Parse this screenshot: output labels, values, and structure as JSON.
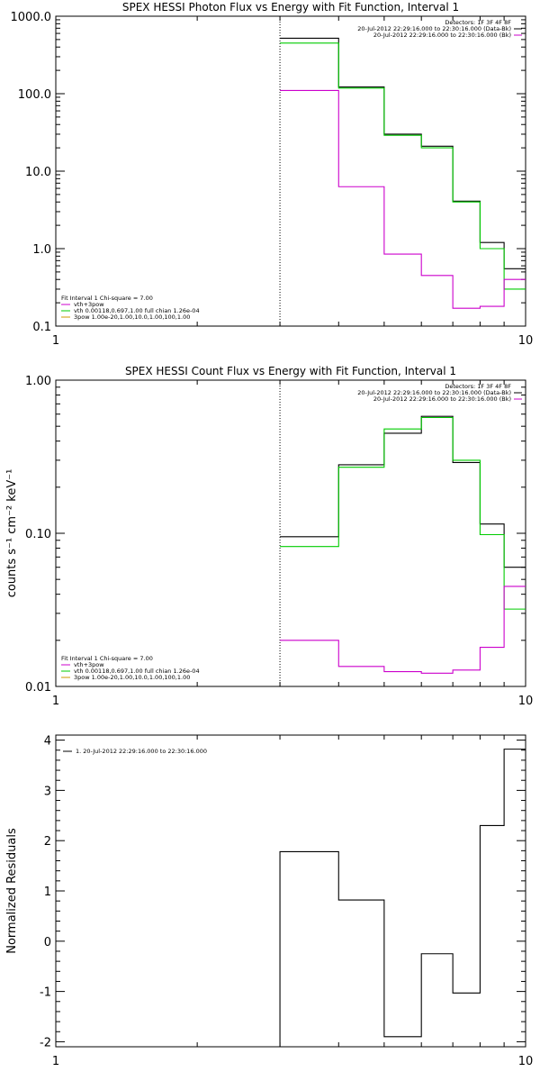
{
  "chart_data": [
    {
      "type": "line",
      "title": "SPEX HESSI Photon Flux vs Energy with Fit Function, Interval 1",
      "xlabel": "",
      "ylabel": "",
      "xscale": "log",
      "yscale": "log",
      "xlim": [
        1,
        10
      ],
      "ylim": [
        0.1,
        1000
      ],
      "xticks": [
        "1",
        "10"
      ],
      "yticks": [
        {
          "v": 1000,
          "label": "1000.0"
        },
        {
          "v": 100,
          "label": "100.0"
        },
        {
          "v": 10,
          "label": "10.0"
        },
        {
          "v": 1,
          "label": "1.0"
        },
        {
          "v": 0.1,
          "label": "0.1"
        }
      ],
      "vline_x": 3,
      "legend_topright": {
        "lines": [
          {
            "text": "Detectors: 1F 3F 4F 8F",
            "color": null
          },
          {
            "text": "20-Jul-2012 22:29:16.000 to 22:30:16.000 (Data-Bk)",
            "color": "#000000"
          },
          {
            "text": "20-Jul-2012 22:29:16.000 to 22:30:16.000 (Bk)",
            "color": "#cc00cc"
          }
        ]
      },
      "legend_bottomleft": {
        "lines": [
          {
            "text": "Fit Interval 1   Chi-square = 7.00",
            "color": null
          },
          {
            "text": "vth+3pow",
            "color": "#cc00cc"
          },
          {
            "text": "vth 0.00118,0.697,1.00  full chian 1.26e-04",
            "color": "#00cc00"
          },
          {
            "text": "3pow 1.00e-20,1.00,10.0,1.00,100,1.00",
            "color": "#cc9900"
          }
        ]
      },
      "edges": [
        3,
        4,
        5,
        6,
        7,
        8,
        9,
        10
      ],
      "series": [
        {
          "color": "#000000",
          "values": [
            520,
            122,
            30,
            21,
            4.1,
            1.2,
            0.55
          ]
        },
        {
          "color": "#00cc00",
          "values": [
            450,
            118,
            29,
            20,
            4.0,
            1.0,
            0.3
          ]
        },
        {
          "color": "#cc00cc",
          "values": [
            110,
            6.3,
            0.85,
            0.45,
            0.17,
            0.18,
            0.4
          ]
        }
      ]
    },
    {
      "type": "line",
      "title": "SPEX HESSI Count Flux vs Energy with Fit Function, Interval 1",
      "xlabel": "",
      "ylabel": "counts s⁻¹ cm⁻² keV⁻¹",
      "xscale": "log",
      "yscale": "log",
      "xlim": [
        1,
        10
      ],
      "ylim": [
        0.01,
        1
      ],
      "xticks": [
        "1",
        "10"
      ],
      "yticks": [
        {
          "v": 1,
          "label": "1.00"
        },
        {
          "v": 0.1,
          "label": "0.10"
        },
        {
          "v": 0.01,
          "label": "0.01"
        }
      ],
      "vline_x": 3,
      "legend_topright": {
        "lines": [
          {
            "text": "Detectors: 1F 3F 4F 8F",
            "color": null
          },
          {
            "text": "20-Jul-2012 22:29:16.000 to 22:30:16.000 (Data-Bk)",
            "color": "#000000"
          },
          {
            "text": "20-Jul-2012 22:29:16.000 to 22:30:16.000 (Bk)",
            "color": "#cc00cc"
          }
        ]
      },
      "legend_bottomleft": {
        "lines": [
          {
            "text": "Fit Interval 1   Chi-square = 7.00",
            "color": null
          },
          {
            "text": "vth+3pow",
            "color": "#cc00cc"
          },
          {
            "text": "vth 0.00118,0.697,1.00  full chian 1.26e-04",
            "color": "#00cc00"
          },
          {
            "text": "3pow 1.00e-20,1.00,10.0,1.00,100,1.00",
            "color": "#cc9900"
          }
        ]
      },
      "edges": [
        3,
        4,
        5,
        6,
        7,
        8,
        9,
        10
      ],
      "series": [
        {
          "color": "#000000",
          "values": [
            0.095,
            0.28,
            0.45,
            0.58,
            0.29,
            0.115,
            0.06
          ]
        },
        {
          "color": "#00cc00",
          "values": [
            0.082,
            0.27,
            0.48,
            0.57,
            0.3,
            0.098,
            0.032
          ]
        },
        {
          "color": "#cc00cc",
          "values": [
            0.02,
            0.0135,
            0.0125,
            0.0122,
            0.0128,
            0.018,
            0.045
          ]
        }
      ]
    },
    {
      "type": "line",
      "title": "",
      "xlabel": "",
      "ylabel": "Normalized Residuals",
      "xscale": "log",
      "yscale": "linear",
      "xlim": [
        1,
        10
      ],
      "ylim": [
        -2.1,
        4.1
      ],
      "xticks": [
        "1",
        "10"
      ],
      "yticks": [
        {
          "v": 4,
          "label": "4"
        },
        {
          "v": 3,
          "label": "3"
        },
        {
          "v": 2,
          "label": "2"
        },
        {
          "v": 1,
          "label": "1"
        },
        {
          "v": 0,
          "label": "0"
        },
        {
          "v": -1,
          "label": "-1"
        },
        {
          "v": -2,
          "label": "-2"
        }
      ],
      "legend_topleft": {
        "lines": [
          {
            "text": "1. 20-Jul-2012 22:29:16.000 to 22:30:16.000",
            "color": "#000000"
          }
        ]
      },
      "edges": [
        3,
        4,
        5,
        6,
        7,
        8,
        9,
        10
      ],
      "series": [
        {
          "color": "#000000",
          "values": [
            1.78,
            0.82,
            -1.9,
            -0.25,
            -1.03,
            2.3,
            3.82
          ]
        }
      ]
    }
  ]
}
